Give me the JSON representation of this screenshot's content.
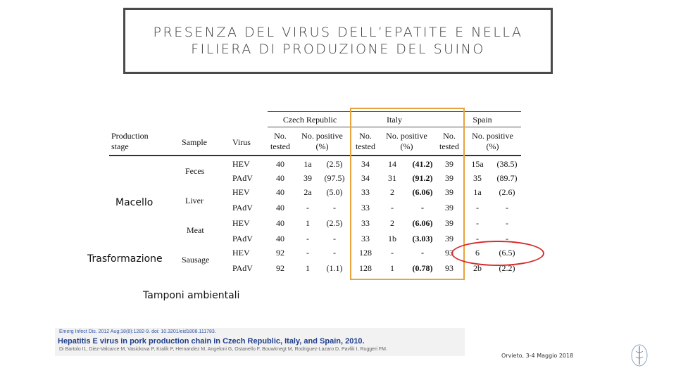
{
  "slide": {
    "title_line1": "PRESENZA DEL VIRUS DELL’EPATITE E NELLA",
    "title_line2": "FILIERA DI PRODUZIONE DEL SUINO",
    "footer": "Orvieto, 3-4 Maggio 2018",
    "env_label": "Tamponi ambientali"
  },
  "table": {
    "countries": [
      "Czech Republic",
      "Italy",
      "Spain"
    ],
    "headers": {
      "production_stage": "Production stage",
      "sample": "Sample",
      "virus": "Virus",
      "no_tested": "No. tested",
      "no_positive": "No. positive (%)"
    },
    "stage_labels": [
      "Macello",
      "Trasformazione"
    ],
    "samples": [
      "Feces",
      "Liver",
      "Meat",
      "Sausage"
    ],
    "rows": [
      {
        "virus": "HEV",
        "cz_t": "40",
        "cz_p": "1a",
        "cz_pct": "(2.5)",
        "it_t": "34",
        "it_p": "14",
        "it_pct": "(41.2)",
        "es_t": "39",
        "es_p": "15a",
        "es_pct": "(38.5)"
      },
      {
        "virus": "PAdV",
        "cz_t": "40",
        "cz_p": "39",
        "cz_pct": "(97.5)",
        "it_t": "34",
        "it_p": "31",
        "it_pct": "(91.2)",
        "es_t": "39",
        "es_p": "35",
        "es_pct": "(89.7)"
      },
      {
        "virus": "HEV",
        "cz_t": "40",
        "cz_p": "2a",
        "cz_pct": "(5.0)",
        "it_t": "33",
        "it_p": "2",
        "it_pct": "(6.06)",
        "es_t": "39",
        "es_p": "1a",
        "es_pct": "(2.6)"
      },
      {
        "virus": "PAdV",
        "cz_t": "40",
        "cz_p": "-",
        "cz_pct": "-",
        "it_t": "33",
        "it_p": "-",
        "it_pct": "-",
        "es_t": "39",
        "es_p": "-",
        "es_pct": "-"
      },
      {
        "virus": "HEV",
        "cz_t": "40",
        "cz_p": "1",
        "cz_pct": "(2.5)",
        "it_t": "33",
        "it_p": "2",
        "it_pct": "(6.06)",
        "es_t": "39",
        "es_p": "-",
        "es_pct": "-"
      },
      {
        "virus": "PAdV",
        "cz_t": "40",
        "cz_p": "-",
        "cz_pct": "-",
        "it_t": "33",
        "it_p": "1b",
        "it_pct": "(3.03)",
        "es_t": "39",
        "es_p": "-",
        "es_pct": "-"
      },
      {
        "virus": "HEV",
        "cz_t": "92",
        "cz_p": "-",
        "cz_pct": "-",
        "it_t": "128",
        "it_p": "-",
        "it_pct": "-",
        "es_t": "93",
        "es_p": "6",
        "es_pct": "(6.5)"
      },
      {
        "virus": "PAdV",
        "cz_t": "92",
        "cz_p": "1",
        "cz_pct": "(1.1)",
        "it_t": "128",
        "it_p": "1",
        "it_pct": "(0.78)",
        "es_t": "93",
        "es_p": "2b",
        "es_pct": "(2.2)"
      }
    ]
  },
  "reference": {
    "line1": "Emerg Infect Dis. 2012 Aug;18(8):1282-9. doi: 10.3201/eid1808.111783.",
    "line2": "Hepatitis E virus in pork production chain in Czech Republic, Italy, and Spain, 2010.",
    "line3": "Di Bartolo I1, Diez-Valcarce M, Vasickova P, Kralik P, Hernandez M, Angeloni G, Ostanello F, Bouwknegt M, Rodriguez-Lazaro D, Pavlik I, Ruggeri FM."
  },
  "colors": {
    "italy_highlight": "#e8a33d",
    "spain_sausage_highlight": "#d62a2a"
  }
}
